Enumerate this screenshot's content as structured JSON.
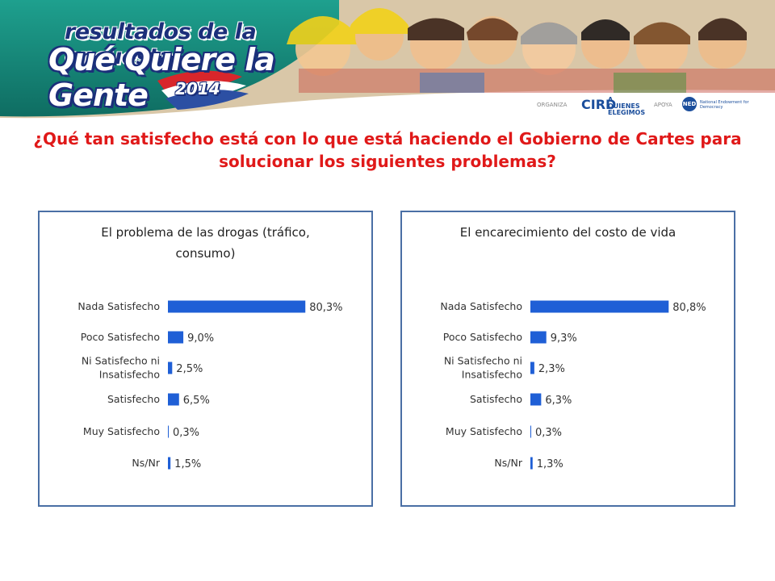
{
  "header": {
    "logo_line1": "resultados de la encuesta",
    "logo_line2": "Qué Quiere la Gente",
    "logo_year": "2014",
    "organiza_label": "ORGANIZA",
    "cird_name": "CIRD",
    "aqe_name": "A QUIENES ELEGIMOS",
    "apoya_label": "APOYA",
    "ned_name": "NED",
    "ned_full": "National Endowment for Democracy"
  },
  "question": "¿Qué tan satisfecho está con lo que está haciendo el Gobierno de Cartes para solucionar los siguientes problemas?",
  "colors": {
    "bar": "#1f5fd6",
    "title": "#e01919",
    "panel_border": "#4a6fa5",
    "banner_teal": "#17897a"
  },
  "chart_data": [
    {
      "type": "bar",
      "orientation": "horizontal",
      "title": "El problema de las drogas (tráfico, consumo)",
      "categories": [
        "Nada Satisfecho",
        "Poco Satisfecho",
        "Ni Satisfecho ni Insatisfecho",
        "Satisfecho",
        "Muy Satisfecho",
        "Ns/Nr"
      ],
      "values": [
        80.3,
        9.0,
        2.5,
        6.5,
        0.3,
        1.5
      ],
      "value_labels": [
        "80,3%",
        "9,0%",
        "2,5%",
        "6,5%",
        "0,3%",
        "1,5%"
      ],
      "xlim": [
        0,
        100
      ],
      "grid": false,
      "legend": "none"
    },
    {
      "type": "bar",
      "orientation": "horizontal",
      "title": "El encarecimiento del costo de vida",
      "categories": [
        "Nada Satisfecho",
        "Poco Satisfecho",
        "Ni Satisfecho ni Insatisfecho",
        "Satisfecho",
        "Muy Satisfecho",
        "Ns/Nr"
      ],
      "values": [
        80.8,
        9.3,
        2.3,
        6.3,
        0.3,
        1.3
      ],
      "value_labels": [
        "80,8%",
        "9,3%",
        "2,3%",
        "6,3%",
        "0,3%",
        "1,3%"
      ],
      "xlim": [
        0,
        100
      ],
      "grid": false,
      "legend": "none"
    }
  ]
}
